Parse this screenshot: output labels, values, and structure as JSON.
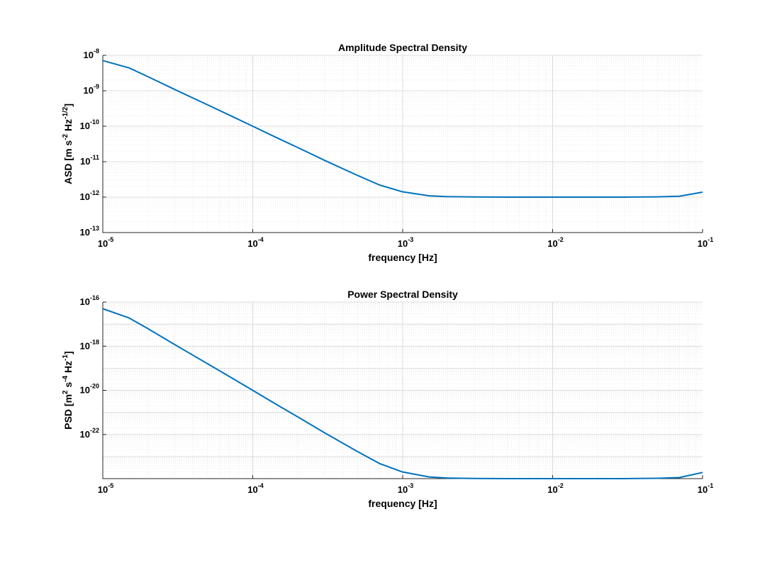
{
  "chart_data": [
    {
      "type": "line",
      "title": "Amplitude Spectral Density",
      "xlabel": "frequency [Hz]",
      "ylabel": "ASD [m s^-2 Hz^-1/2]",
      "ylabel_parts": [
        {
          "t": "ASD [m s",
          "sup": false
        },
        {
          "t": "-2",
          "sup": true
        },
        {
          "t": " Hz",
          "sup": false
        },
        {
          "t": "-1/2",
          "sup": true
        },
        {
          "t": "]",
          "sup": false
        }
      ],
      "xscale": "log",
      "yscale": "log",
      "xlim": [
        1e-05,
        0.1
      ],
      "ylim": [
        1e-13,
        1e-08
      ],
      "grid": true,
      "x_ticks": [
        {
          "base": "10",
          "exp": "-5"
        },
        {
          "base": "10",
          "exp": "-4"
        },
        {
          "base": "10",
          "exp": "-3"
        },
        {
          "base": "10",
          "exp": "-2"
        },
        {
          "base": "10",
          "exp": "-1"
        }
      ],
      "y_ticks": [
        {
          "value": 1e-13,
          "base": "10",
          "exp": "-13"
        },
        {
          "value": 1e-12,
          "base": "10",
          "exp": "-12"
        },
        {
          "value": 1e-11,
          "base": "10",
          "exp": "-11"
        },
        {
          "value": 1e-10,
          "base": "10",
          "exp": "-10"
        },
        {
          "value": 1e-09,
          "base": "10",
          "exp": "-9"
        },
        {
          "value": 1e-08,
          "base": "10",
          "exp": "-8"
        }
      ],
      "series": [
        {
          "color": "#0072bd",
          "x": [
            1e-05,
            1.5e-05,
            2e-05,
            3e-05,
            5e-05,
            7e-05,
            0.0001,
            0.00015,
            0.0002,
            0.0003,
            0.0005,
            0.0007,
            0.001,
            0.0015,
            0.002,
            0.003,
            0.005,
            0.01,
            0.02,
            0.03,
            0.05,
            0.07,
            0.1
          ],
          "y": [
            7.1e-09,
            4.4e-09,
            2.5e-09,
            1.1e-09,
            4e-10,
            2.05e-10,
            1e-10,
            4.4e-11,
            2.5e-11,
            1.1e-11,
            4.1e-12,
            2.2e-12,
            1.41e-12,
            1.09e-12,
            1.03e-12,
            1.01e-12,
            1e-12,
            1e-12,
            1e-12,
            1e-12,
            1.02e-12,
            1.06e-12,
            1.38e-12
          ]
        }
      ]
    },
    {
      "type": "line",
      "title": "Power Spectral Density",
      "xlabel": "frequency [Hz]",
      "ylabel": "PSD [m^2 s^-4 Hz^-1]",
      "ylabel_parts": [
        {
          "t": "PSD [m",
          "sup": false
        },
        {
          "t": "2",
          "sup": true
        },
        {
          "t": " s",
          "sup": false
        },
        {
          "t": "-4",
          "sup": true
        },
        {
          "t": " Hz",
          "sup": false
        },
        {
          "t": "-1",
          "sup": true
        },
        {
          "t": "]",
          "sup": false
        }
      ],
      "xscale": "log",
      "yscale": "log",
      "xlim": [
        1e-05,
        0.1
      ],
      "ylim": [
        1e-24,
        1e-16
      ],
      "grid": true,
      "x_ticks": [
        {
          "base": "10",
          "exp": "-5"
        },
        {
          "base": "10",
          "exp": "-4"
        },
        {
          "base": "10",
          "exp": "-3"
        },
        {
          "base": "10",
          "exp": "-2"
        },
        {
          "base": "10",
          "exp": "-1"
        }
      ],
      "y_ticks": [
        {
          "value": 1e-22,
          "base": "10",
          "exp": "-22"
        },
        {
          "value": 1e-20,
          "base": "10",
          "exp": "-20"
        },
        {
          "value": 1e-18,
          "base": "10",
          "exp": "-18"
        },
        {
          "value": 1e-16,
          "base": "10",
          "exp": "-16"
        }
      ],
      "series": [
        {
          "color": "#0072bd",
          "x": [
            1e-05,
            1.5e-05,
            2e-05,
            3e-05,
            5e-05,
            7e-05,
            0.0001,
            0.00015,
            0.0002,
            0.0003,
            0.0005,
            0.0007,
            0.001,
            0.0015,
            0.002,
            0.003,
            0.005,
            0.01,
            0.02,
            0.03,
            0.05,
            0.07,
            0.1
          ],
          "y": [
            5e-17,
            1.9e-17,
            6.25e-18,
            1.21e-18,
            1.6e-19,
            4.2e-20,
            1e-20,
            1.94e-21,
            6.25e-22,
            1.21e-22,
            1.68e-23,
            4.84e-24,
            2e-24,
            1.19e-24,
            1.06e-24,
            1.02e-24,
            1e-24,
            1e-24,
            1e-24,
            1e-24,
            1.04e-24,
            1.12e-24,
            1.9e-24
          ]
        }
      ]
    }
  ]
}
